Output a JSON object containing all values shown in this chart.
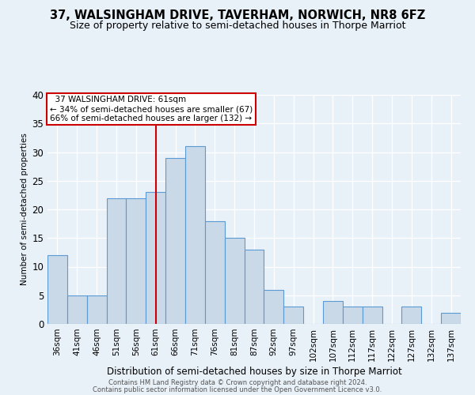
{
  "title": "37, WALSINGHAM DRIVE, TAVERHAM, NORWICH, NR8 6FZ",
  "subtitle": "Size of property relative to semi-detached houses in Thorpe Marriot",
  "xlabel": "Distribution of semi-detached houses by size in Thorpe Marriot",
  "ylabel": "Number of semi-detached properties",
  "footer1": "Contains HM Land Registry data © Crown copyright and database right 2024.",
  "footer2": "Contains public sector information licensed under the Open Government Licence v3.0.",
  "categories": [
    "36sqm",
    "41sqm",
    "46sqm",
    "51sqm",
    "56sqm",
    "61sqm",
    "66sqm",
    "71sqm",
    "76sqm",
    "81sqm",
    "87sqm",
    "92sqm",
    "97sqm",
    "102sqm",
    "107sqm",
    "112sqm",
    "117sqm",
    "122sqm",
    "127sqm",
    "132sqm",
    "137sqm"
  ],
  "values": [
    12,
    5,
    5,
    22,
    22,
    23,
    29,
    31,
    18,
    15,
    13,
    6,
    3,
    0,
    4,
    3,
    3,
    0,
    3,
    0,
    2
  ],
  "bar_color": "#c9d9e8",
  "bar_edge_color": "#5b9bd5",
  "marker_idx": 5,
  "marker_label": "37 WALSINGHAM DRIVE: 61sqm",
  "smaller_pct": "34%",
  "smaller_n": 67,
  "larger_pct": "66%",
  "larger_n": 132,
  "annotation_box_facecolor": "#ffffff",
  "annotation_box_edgecolor": "#cc0000",
  "marker_line_color": "#cc0000",
  "ylim": [
    0,
    40
  ],
  "yticks": [
    0,
    5,
    10,
    15,
    20,
    25,
    30,
    35,
    40
  ],
  "background_color": "#e8f0f8",
  "grid_color": "#ffffff",
  "title_fontsize": 10.5,
  "subtitle_fontsize": 9
}
